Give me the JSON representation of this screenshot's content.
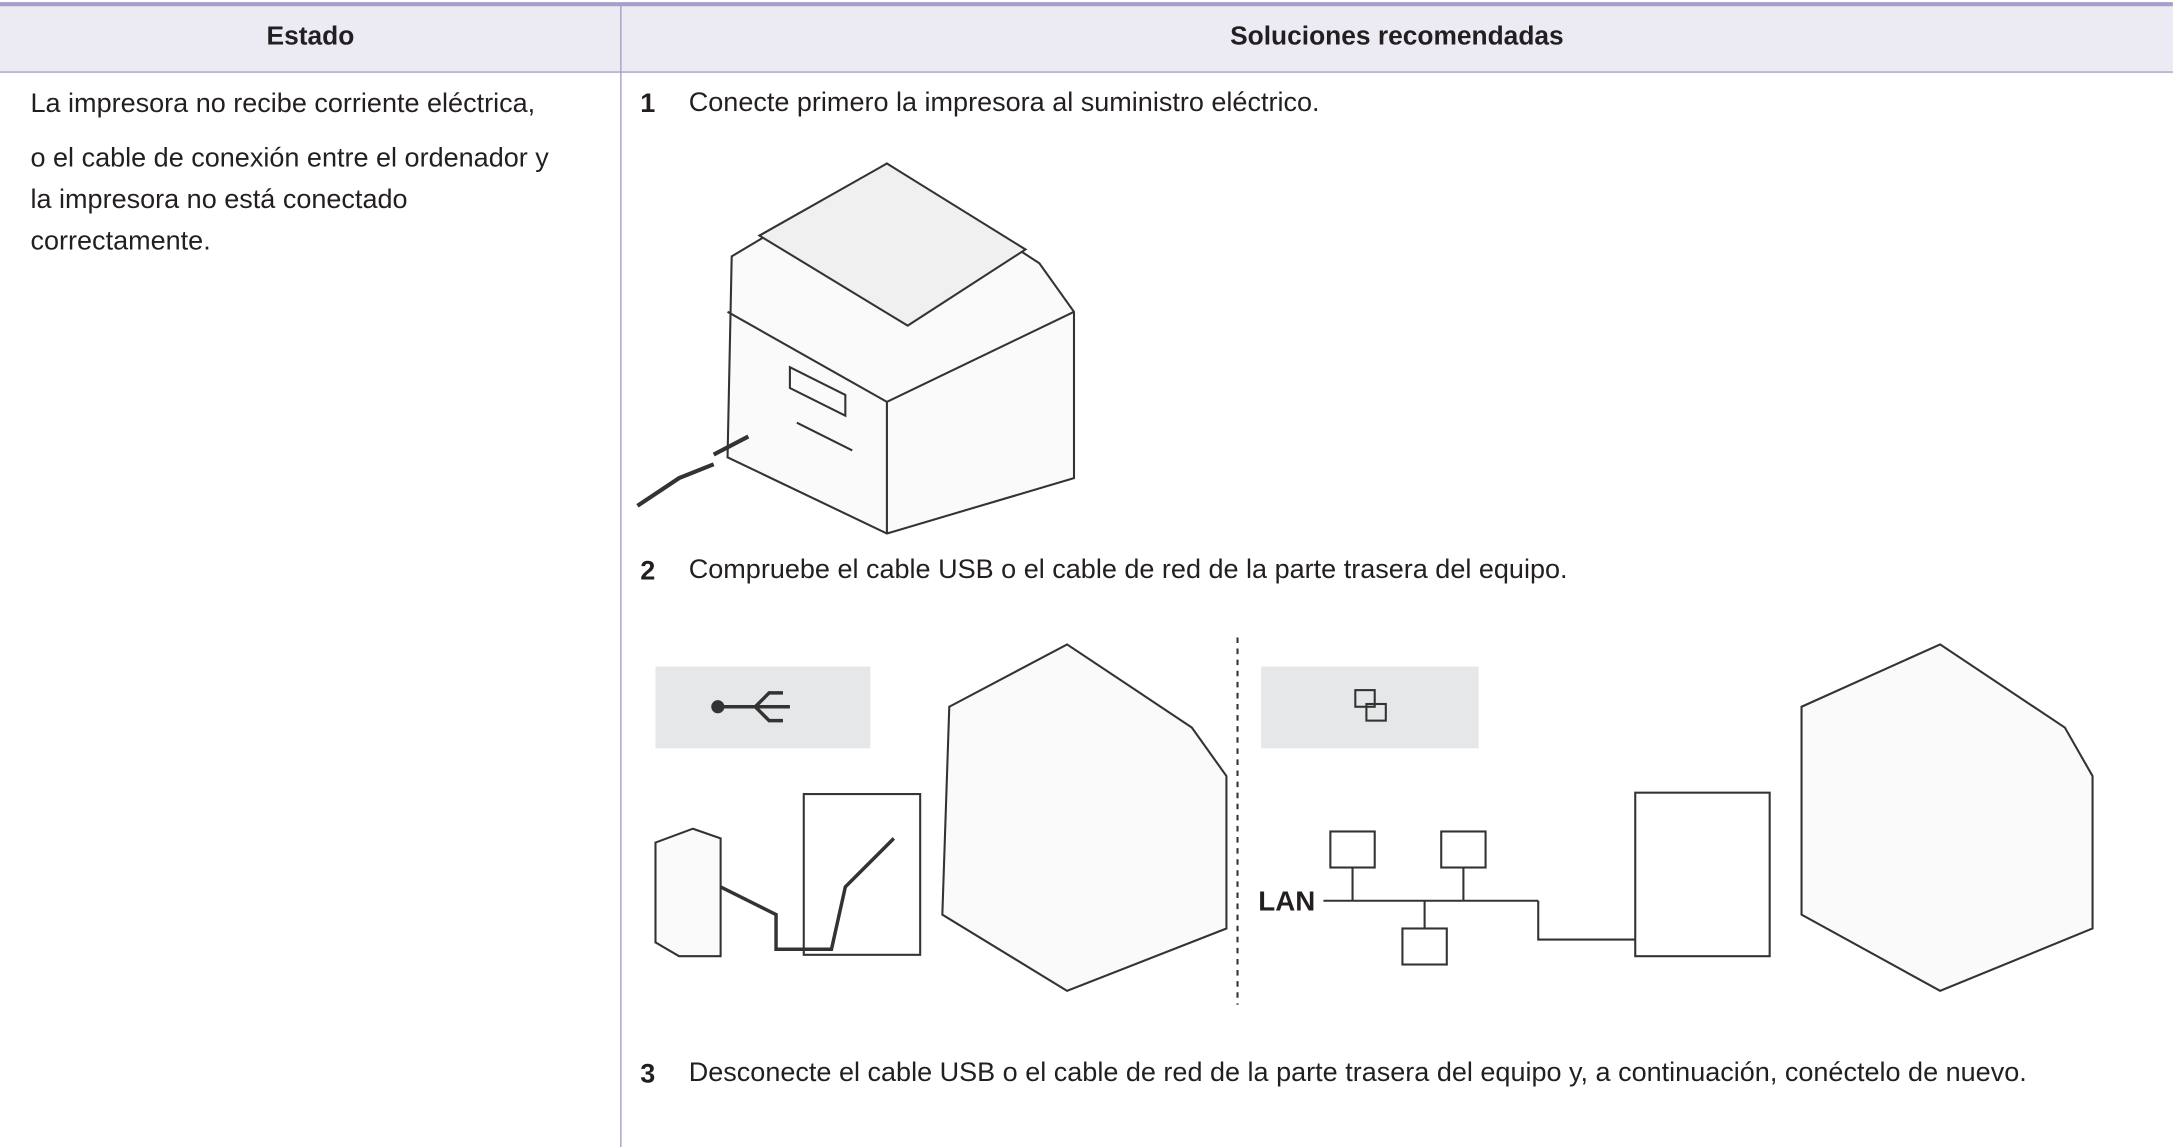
{
  "table": {
    "headers": [
      "Estado",
      "Soluciones recomendadas"
    ],
    "rows": [
      {
        "status": [
          "La impresora no recibe corriente eléctrica,",
          "o el cable de conexión entre el ordenador y",
          "la impresora no está conectado",
          "correctamente."
        ],
        "steps": [
          {
            "number": "1",
            "text": "Conecte primero la impresora al suministro eléctrico."
          },
          {
            "number": "2",
            "text": "Compruebe el cable USB o el cable de red de la parte trasera del equipo."
          },
          {
            "number": "3",
            "text": "Desconecte el cable USB o el cable de red de la parte trasera del equipo y, a continuación, conéctelo de nuevo."
          }
        ]
      }
    ]
  },
  "figures": {
    "lan_label": "LAN"
  }
}
